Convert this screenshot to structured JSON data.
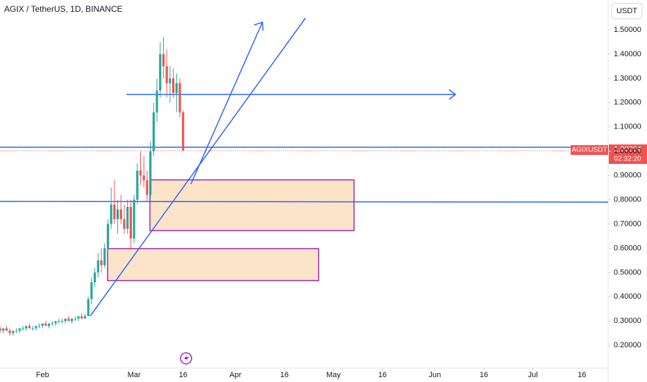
{
  "chart_data": {
    "type": "candlestick",
    "title": "AGIX / TetherUS, 1D, BINANCE",
    "currency": "USDT",
    "x": [
      19,
      20,
      21,
      22,
      23,
      24,
      25,
      26,
      27,
      28,
      29,
      30,
      31,
      32,
      33,
      34,
      35,
      36,
      37,
      38,
      39,
      40,
      41,
      42,
      43,
      44,
      45,
      46,
      47,
      48,
      49,
      50,
      51,
      52,
      53,
      54,
      55,
      56,
      57,
      58,
      59,
      60,
      61,
      62,
      63,
      64,
      65,
      66,
      67,
      68,
      69,
      70,
      71,
      72,
      73,
      74,
      75
    ],
    "open": [
      0.27,
      0.26,
      0.27,
      0.26,
      0.25,
      0.26,
      0.26,
      0.27,
      0.27,
      0.28,
      0.27,
      0.27,
      0.28,
      0.28,
      0.29,
      0.28,
      0.29,
      0.29,
      0.3,
      0.3,
      0.3,
      0.31,
      0.3,
      0.31,
      0.31,
      0.32,
      0.31,
      0.32,
      0.39,
      0.46,
      0.5,
      0.55,
      0.53,
      0.6,
      0.7,
      0.78,
      0.72,
      0.76,
      0.72,
      0.68,
      0.77,
      0.64,
      0.8,
      0.92,
      0.9,
      0.88,
      0.82,
      1.0,
      1.16,
      1.25,
      1.4,
      1.35,
      1.28,
      1.3,
      1.24,
      1.28,
      1.16
    ],
    "high": [
      0.28,
      0.27,
      0.28,
      0.27,
      0.26,
      0.27,
      0.27,
      0.28,
      0.28,
      0.29,
      0.28,
      0.28,
      0.29,
      0.29,
      0.3,
      0.29,
      0.3,
      0.3,
      0.31,
      0.31,
      0.31,
      0.32,
      0.31,
      0.32,
      0.32,
      0.33,
      0.33,
      0.4,
      0.48,
      0.52,
      0.58,
      0.6,
      0.62,
      0.72,
      0.85,
      0.88,
      0.8,
      0.82,
      0.78,
      0.8,
      0.8,
      0.82,
      0.95,
      1.0,
      0.98,
      0.92,
      1.04,
      1.2,
      1.3,
      1.45,
      1.47,
      1.42,
      1.35,
      1.34,
      1.32,
      1.3,
      1.17
    ],
    "low": [
      0.25,
      0.25,
      0.26,
      0.24,
      0.24,
      0.25,
      0.25,
      0.26,
      0.26,
      0.27,
      0.26,
      0.26,
      0.27,
      0.27,
      0.28,
      0.27,
      0.28,
      0.28,
      0.29,
      0.29,
      0.29,
      0.3,
      0.29,
      0.3,
      0.3,
      0.31,
      0.31,
      0.32,
      0.37,
      0.44,
      0.48,
      0.5,
      0.52,
      0.58,
      0.68,
      0.7,
      0.66,
      0.7,
      0.66,
      0.66,
      0.6,
      0.62,
      0.78,
      0.86,
      0.85,
      0.79,
      0.8,
      0.98,
      1.12,
      1.22,
      1.3,
      1.22,
      1.2,
      1.22,
      1.16,
      1.14,
      1.0
    ],
    "close": [
      0.26,
      0.27,
      0.26,
      0.25,
      0.26,
      0.26,
      0.27,
      0.27,
      0.28,
      0.27,
      0.27,
      0.28,
      0.28,
      0.29,
      0.28,
      0.29,
      0.29,
      0.3,
      0.3,
      0.3,
      0.31,
      0.3,
      0.31,
      0.31,
      0.32,
      0.31,
      0.32,
      0.39,
      0.46,
      0.5,
      0.55,
      0.53,
      0.6,
      0.7,
      0.78,
      0.72,
      0.76,
      0.72,
      0.68,
      0.77,
      0.64,
      0.8,
      0.92,
      0.9,
      0.88,
      0.82,
      1.0,
      1.16,
      1.25,
      1.4,
      1.35,
      1.28,
      1.3,
      1.24,
      1.28,
      1.16,
      1.00364
    ],
    "up_color": "#26a69a",
    "down_color": "#ef5350",
    "xlim": [
      19,
      205
    ],
    "xticks": [
      {
        "value": 32,
        "label": "Feb"
      },
      {
        "value": 60,
        "label": "Mar"
      },
      {
        "value": 75,
        "label": "16"
      },
      {
        "value": 91,
        "label": "Apr"
      },
      {
        "value": 106,
        "label": "16"
      },
      {
        "value": 121,
        "label": "May"
      },
      {
        "value": 136,
        "label": "16"
      },
      {
        "value": 152,
        "label": "Jun"
      },
      {
        "value": 167,
        "label": "16"
      },
      {
        "value": 182,
        "label": "Jul"
      },
      {
        "value": 197,
        "label": "16"
      }
    ],
    "ylim": [
      0.106,
      1.623
    ],
    "yticks": [
      {
        "value": 1.5,
        "label": "1.50000"
      },
      {
        "value": 1.4,
        "label": "1.40000"
      },
      {
        "value": 1.3,
        "label": "1.30000"
      },
      {
        "value": 1.2,
        "label": "1.20000"
      },
      {
        "value": 1.1,
        "label": "1.10000"
      },
      {
        "value": 1.0,
        "label": "1.00000"
      },
      {
        "value": 0.9,
        "label": "0.90000"
      },
      {
        "value": 0.8,
        "label": "0.80000"
      },
      {
        "value": 0.7,
        "label": "0.70000"
      },
      {
        "value": 0.6,
        "label": "0.60000"
      },
      {
        "value": 0.5,
        "label": "0.50000"
      },
      {
        "value": 0.4,
        "label": "0.40000"
      },
      {
        "value": 0.3,
        "label": "0.30000"
      },
      {
        "value": 0.2,
        "label": "0.20000"
      }
    ],
    "grid": false,
    "symbol_label": "AGIXUSDT",
    "last_price_label": "1.00364",
    "countdown": "02:32:20"
  }
}
